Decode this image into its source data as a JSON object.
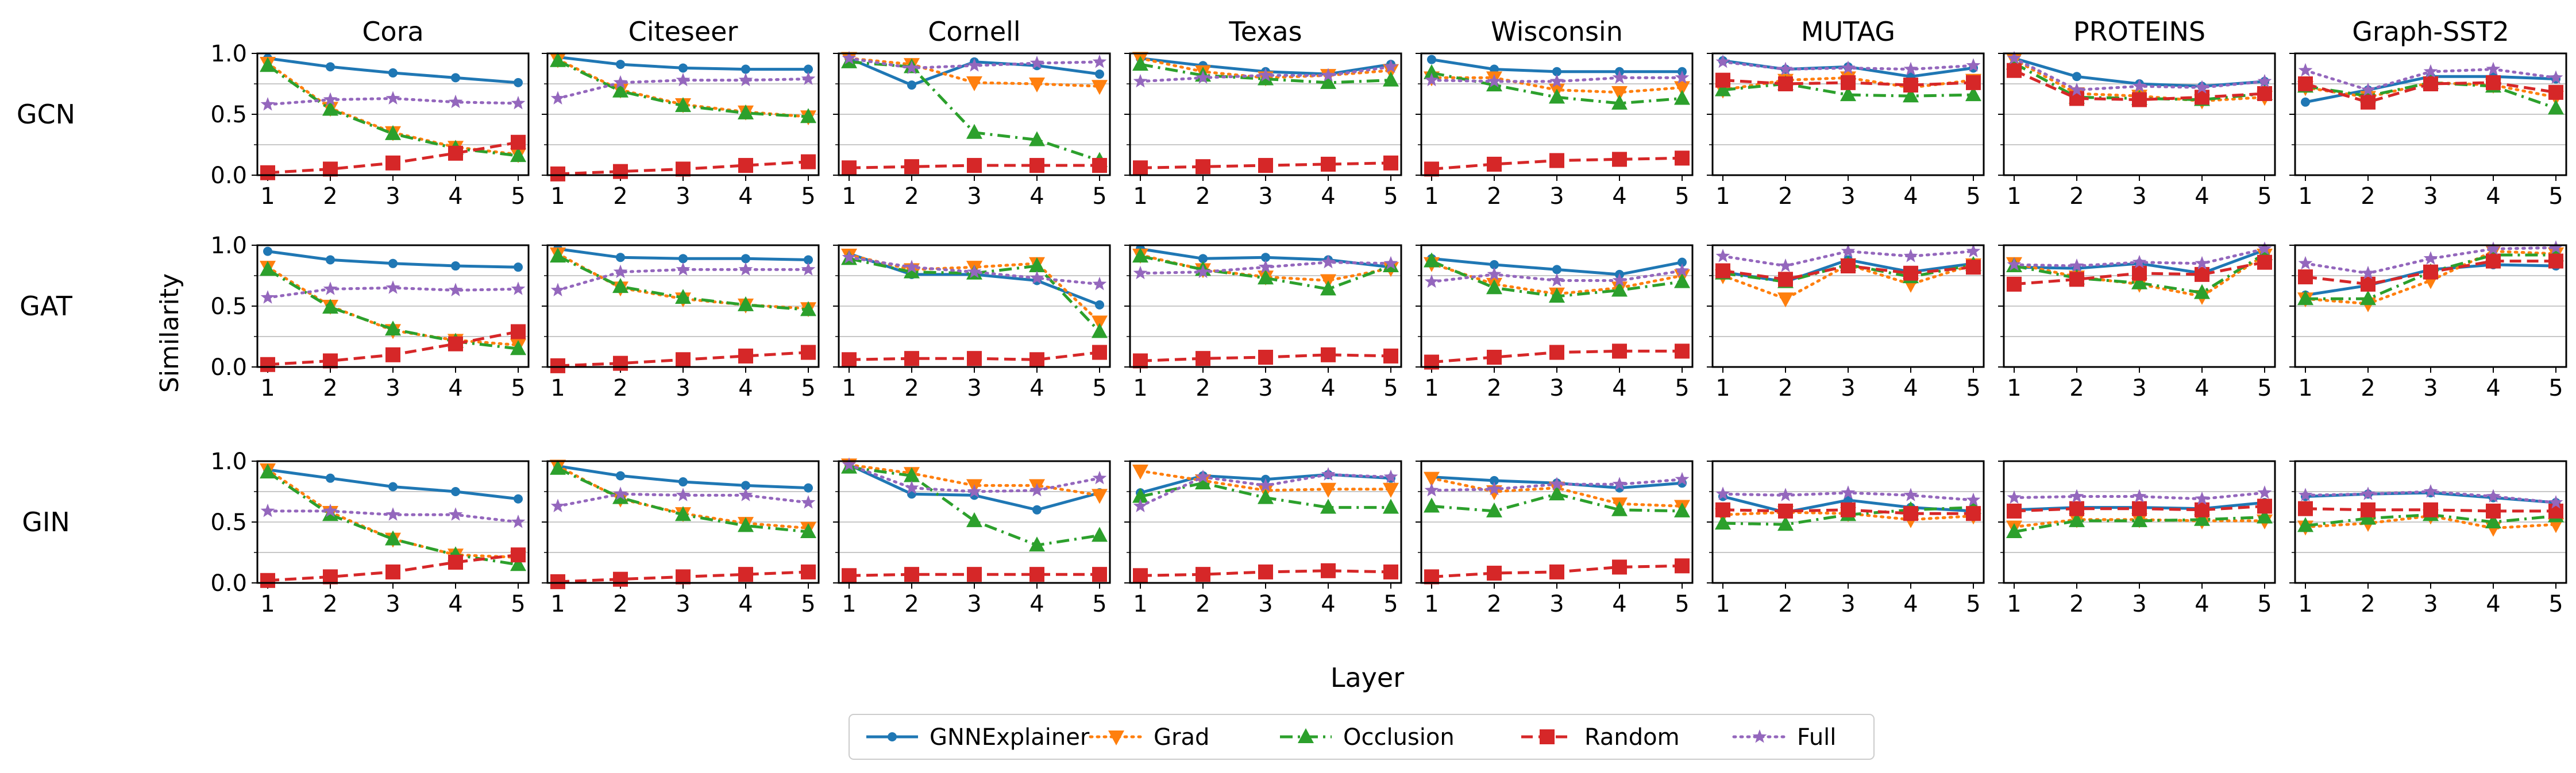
{
  "chart_data": {
    "type": "line",
    "ylabel": "Similarity",
    "xlabel": "Layer",
    "x": [
      1,
      2,
      3,
      4,
      5
    ],
    "ylim": [
      0,
      1
    ],
    "yticks": [
      "0.0",
      "0.5",
      "1.0"
    ],
    "xticks": [
      "1",
      "2",
      "3",
      "4",
      "5"
    ],
    "grid": "horizontal",
    "legend_position": "bottom-center",
    "datasets": [
      "Cora",
      "Citeseer",
      "Cornell",
      "Texas",
      "Wisconsin",
      "MUTAG",
      "PROTEINS",
      "Graph-SST2"
    ],
    "models": [
      "GCN",
      "GAT",
      "GIN"
    ],
    "legend": [
      {
        "name": "GNNExplainer",
        "color": "#1f77b4",
        "marker": "circle",
        "dash": "solid"
      },
      {
        "name": "Grad",
        "color": "#ff7f0e",
        "marker": "triangle-down",
        "dash": "dotted"
      },
      {
        "name": "Occlusion",
        "color": "#2ca02c",
        "marker": "triangle-up",
        "dash": "dashdot"
      },
      {
        "name": "Random",
        "color": "#d62728",
        "marker": "square",
        "dash": "dashed"
      },
      {
        "name": "Full",
        "color": "#9467bd",
        "marker": "star",
        "dash": "dotted"
      }
    ],
    "panels": [
      [
        {
          "dataset": "Cora",
          "series": [
            [
              0.96,
              0.89,
              0.84,
              0.8,
              0.76
            ],
            [
              0.92,
              0.55,
              0.35,
              0.23,
              0.17
            ],
            [
              0.9,
              0.54,
              0.34,
              0.22,
              0.16
            ],
            [
              0.02,
              0.05,
              0.1,
              0.18,
              0.27
            ],
            [
              0.58,
              0.62,
              0.63,
              0.6,
              0.59
            ]
          ]
        },
        {
          "dataset": "Citeseer",
          "series": [
            [
              0.97,
              0.91,
              0.88,
              0.87,
              0.87
            ],
            [
              0.95,
              0.7,
              0.58,
              0.52,
              0.48
            ],
            [
              0.94,
              0.69,
              0.57,
              0.51,
              0.48
            ],
            [
              0.01,
              0.03,
              0.05,
              0.08,
              0.11
            ],
            [
              0.63,
              0.76,
              0.78,
              0.78,
              0.79
            ]
          ]
        },
        {
          "dataset": "Cornell",
          "series": [
            [
              0.96,
              0.74,
              0.93,
              0.9,
              0.83
            ],
            [
              0.96,
              0.91,
              0.76,
              0.75,
              0.73
            ],
            [
              0.93,
              0.89,
              0.35,
              0.29,
              0.12
            ],
            [
              0.06,
              0.07,
              0.08,
              0.08,
              0.08
            ],
            [
              0.96,
              0.88,
              0.9,
              0.92,
              0.93
            ]
          ]
        },
        {
          "dataset": "Texas",
          "series": [
            [
              0.96,
              0.9,
              0.85,
              0.83,
              0.91
            ],
            [
              0.96,
              0.85,
              0.8,
              0.82,
              0.86
            ],
            [
              0.91,
              0.82,
              0.79,
              0.76,
              0.78
            ],
            [
              0.06,
              0.07,
              0.08,
              0.09,
              0.1
            ],
            [
              0.77,
              0.8,
              0.82,
              0.82,
              0.89
            ]
          ]
        },
        {
          "dataset": "Wisconsin",
          "series": [
            [
              0.95,
              0.87,
              0.85,
              0.85,
              0.85
            ],
            [
              0.8,
              0.8,
              0.7,
              0.68,
              0.72
            ],
            [
              0.84,
              0.74,
              0.64,
              0.59,
              0.63
            ],
            [
              0.05,
              0.09,
              0.12,
              0.13,
              0.14
            ],
            [
              0.78,
              0.77,
              0.77,
              0.8,
              0.8
            ]
          ]
        },
        {
          "dataset": "MUTAG",
          "series": [
            [
              0.94,
              0.87,
              0.89,
              0.81,
              0.88
            ],
            [
              0.7,
              0.78,
              0.8,
              0.72,
              0.78
            ],
            [
              0.7,
              0.75,
              0.66,
              0.65,
              0.66
            ],
            [
              0.78,
              0.75,
              0.76,
              0.74,
              0.76
            ],
            [
              0.93,
              0.87,
              0.88,
              0.87,
              0.9
            ]
          ]
        },
        {
          "dataset": "PROTEINS",
          "series": [
            [
              0.96,
              0.81,
              0.75,
              0.73,
              0.77
            ],
            [
              0.95,
              0.67,
              0.65,
              0.61,
              0.64
            ],
            [
              0.92,
              0.64,
              0.63,
              0.62,
              0.67
            ],
            [
              0.86,
              0.63,
              0.62,
              0.64,
              0.67
            ],
            [
              0.96,
              0.7,
              0.73,
              0.72,
              0.77
            ]
          ]
        },
        {
          "dataset": "Graph-SST2",
          "series": [
            [
              0.6,
              0.7,
              0.81,
              0.81,
              0.79
            ],
            [
              0.72,
              0.64,
              0.76,
              0.74,
              0.64
            ],
            [
              0.73,
              0.65,
              0.76,
              0.73,
              0.55
            ],
            [
              0.75,
              0.6,
              0.75,
              0.76,
              0.68
            ],
            [
              0.86,
              0.7,
              0.85,
              0.87,
              0.8
            ]
          ]
        }
      ],
      [
        {
          "dataset": "Cora",
          "series": [
            [
              0.95,
              0.88,
              0.85,
              0.83,
              0.82
            ],
            [
              0.82,
              0.5,
              0.3,
              0.22,
              0.18
            ],
            [
              0.8,
              0.49,
              0.31,
              0.21,
              0.15
            ],
            [
              0.02,
              0.05,
              0.1,
              0.19,
              0.29
            ],
            [
              0.57,
              0.64,
              0.65,
              0.63,
              0.64
            ]
          ]
        },
        {
          "dataset": "Citeseer",
          "series": [
            [
              0.97,
              0.9,
              0.89,
              0.89,
              0.88
            ],
            [
              0.93,
              0.65,
              0.56,
              0.51,
              0.48
            ],
            [
              0.91,
              0.66,
              0.57,
              0.51,
              0.47
            ],
            [
              0.01,
              0.03,
              0.06,
              0.09,
              0.12
            ],
            [
              0.63,
              0.78,
              0.8,
              0.8,
              0.8
            ]
          ]
        },
        {
          "dataset": "Cornell",
          "series": [
            [
              0.93,
              0.76,
              0.76,
              0.71,
              0.51
            ],
            [
              0.92,
              0.8,
              0.82,
              0.85,
              0.37
            ],
            [
              0.89,
              0.78,
              0.77,
              0.83,
              0.29
            ],
            [
              0.06,
              0.07,
              0.07,
              0.06,
              0.12
            ],
            [
              0.9,
              0.82,
              0.78,
              0.73,
              0.68
            ]
          ]
        },
        {
          "dataset": "Texas",
          "series": [
            [
              0.97,
              0.89,
              0.9,
              0.88,
              0.82
            ],
            [
              0.92,
              0.8,
              0.74,
              0.71,
              0.81
            ],
            [
              0.91,
              0.8,
              0.73,
              0.64,
              0.83
            ],
            [
              0.05,
              0.07,
              0.08,
              0.1,
              0.09
            ],
            [
              0.77,
              0.78,
              0.82,
              0.86,
              0.85
            ]
          ]
        },
        {
          "dataset": "Wisconsin",
          "series": [
            [
              0.89,
              0.84,
              0.8,
              0.76,
              0.86
            ],
            [
              0.85,
              0.68,
              0.6,
              0.65,
              0.75
            ],
            [
              0.87,
              0.65,
              0.58,
              0.63,
              0.7
            ],
            [
              0.04,
              0.08,
              0.12,
              0.13,
              0.13
            ],
            [
              0.7,
              0.76,
              0.71,
              0.71,
              0.79
            ]
          ]
        },
        {
          "dataset": "MUTAG",
          "series": [
            [
              0.78,
              0.7,
              0.88,
              0.78,
              0.85
            ],
            [
              0.75,
              0.56,
              0.84,
              0.68,
              0.84
            ],
            [
              0.77,
              0.7,
              0.84,
              0.74,
              0.84
            ],
            [
              0.79,
              0.72,
              0.83,
              0.77,
              0.82
            ],
            [
              0.91,
              0.83,
              0.95,
              0.91,
              0.95
            ]
          ]
        },
        {
          "dataset": "PROTEINS",
          "series": [
            [
              0.82,
              0.81,
              0.85,
              0.77,
              0.96
            ],
            [
              0.85,
              0.74,
              0.68,
              0.58,
              0.92
            ],
            [
              0.83,
              0.73,
              0.69,
              0.61,
              0.93
            ],
            [
              0.68,
              0.72,
              0.77,
              0.76,
              0.86
            ],
            [
              0.84,
              0.83,
              0.86,
              0.85,
              0.97
            ]
          ]
        },
        {
          "dataset": "Graph-SST2",
          "series": [
            [
              0.59,
              0.67,
              0.8,
              0.84,
              0.83
            ],
            [
              0.56,
              0.52,
              0.71,
              0.95,
              0.93
            ],
            [
              0.56,
              0.56,
              0.78,
              0.92,
              0.92
            ],
            [
              0.74,
              0.68,
              0.78,
              0.87,
              0.87
            ],
            [
              0.85,
              0.77,
              0.89,
              0.97,
              0.98
            ]
          ]
        }
      ],
      [
        {
          "dataset": "Cora",
          "series": [
            [
              0.93,
              0.86,
              0.79,
              0.75,
              0.69
            ],
            [
              0.93,
              0.58,
              0.36,
              0.23,
              0.21
            ],
            [
              0.91,
              0.56,
              0.36,
              0.23,
              0.15
            ],
            [
              0.02,
              0.05,
              0.09,
              0.17,
              0.23
            ],
            [
              0.59,
              0.59,
              0.56,
              0.56,
              0.5
            ]
          ]
        },
        {
          "dataset": "Citeseer",
          "series": [
            [
              0.96,
              0.88,
              0.83,
              0.8,
              0.78
            ],
            [
              0.96,
              0.69,
              0.57,
              0.49,
              0.45
            ],
            [
              0.94,
              0.7,
              0.56,
              0.47,
              0.42
            ],
            [
              0.01,
              0.03,
              0.05,
              0.07,
              0.09
            ],
            [
              0.63,
              0.73,
              0.72,
              0.72,
              0.66
            ]
          ]
        },
        {
          "dataset": "Cornell",
          "series": [
            [
              0.97,
              0.73,
              0.72,
              0.6,
              0.74
            ],
            [
              0.97,
              0.9,
              0.8,
              0.8,
              0.72
            ],
            [
              0.95,
              0.88,
              0.51,
              0.31,
              0.39
            ],
            [
              0.06,
              0.07,
              0.07,
              0.07,
              0.07
            ],
            [
              0.97,
              0.78,
              0.75,
              0.76,
              0.86
            ]
          ]
        },
        {
          "dataset": "Texas",
          "series": [
            [
              0.74,
              0.88,
              0.85,
              0.89,
              0.86
            ],
            [
              0.92,
              0.84,
              0.76,
              0.77,
              0.77
            ],
            [
              0.71,
              0.82,
              0.7,
              0.62,
              0.62
            ],
            [
              0.06,
              0.07,
              0.09,
              0.1,
              0.09
            ],
            [
              0.63,
              0.87,
              0.8,
              0.89,
              0.87
            ]
          ]
        },
        {
          "dataset": "Wisconsin",
          "series": [
            [
              0.87,
              0.84,
              0.82,
              0.78,
              0.82
            ],
            [
              0.86,
              0.75,
              0.78,
              0.65,
              0.63
            ],
            [
              0.63,
              0.59,
              0.73,
              0.6,
              0.59
            ],
            [
              0.05,
              0.08,
              0.09,
              0.13,
              0.14
            ],
            [
              0.76,
              0.77,
              0.81,
              0.81,
              0.85
            ]
          ]
        },
        {
          "dataset": "MUTAG",
          "series": [
            [
              0.71,
              0.58,
              0.68,
              0.62,
              0.59
            ],
            [
              0.56,
              0.58,
              0.57,
              0.52,
              0.55
            ],
            [
              0.49,
              0.48,
              0.56,
              0.6,
              0.62
            ],
            [
              0.6,
              0.59,
              0.6,
              0.57,
              0.57
            ],
            [
              0.73,
              0.72,
              0.74,
              0.72,
              0.68
            ]
          ]
        },
        {
          "dataset": "PROTEINS",
          "series": [
            [
              0.6,
              0.62,
              0.62,
              0.61,
              0.66
            ],
            [
              0.46,
              0.52,
              0.52,
              0.51,
              0.51
            ],
            [
              0.42,
              0.51,
              0.51,
              0.52,
              0.54
            ],
            [
              0.59,
              0.61,
              0.61,
              0.6,
              0.63
            ],
            [
              0.7,
              0.71,
              0.71,
              0.69,
              0.74
            ]
          ]
        },
        {
          "dataset": "Graph-SST2",
          "series": [
            [
              0.71,
              0.73,
              0.74,
              0.7,
              0.66
            ],
            [
              0.46,
              0.49,
              0.55,
              0.45,
              0.48
            ],
            [
              0.47,
              0.53,
              0.56,
              0.5,
              0.55
            ],
            [
              0.61,
              0.6,
              0.6,
              0.59,
              0.59
            ],
            [
              0.72,
              0.73,
              0.75,
              0.71,
              0.66
            ]
          ]
        }
      ]
    ]
  }
}
